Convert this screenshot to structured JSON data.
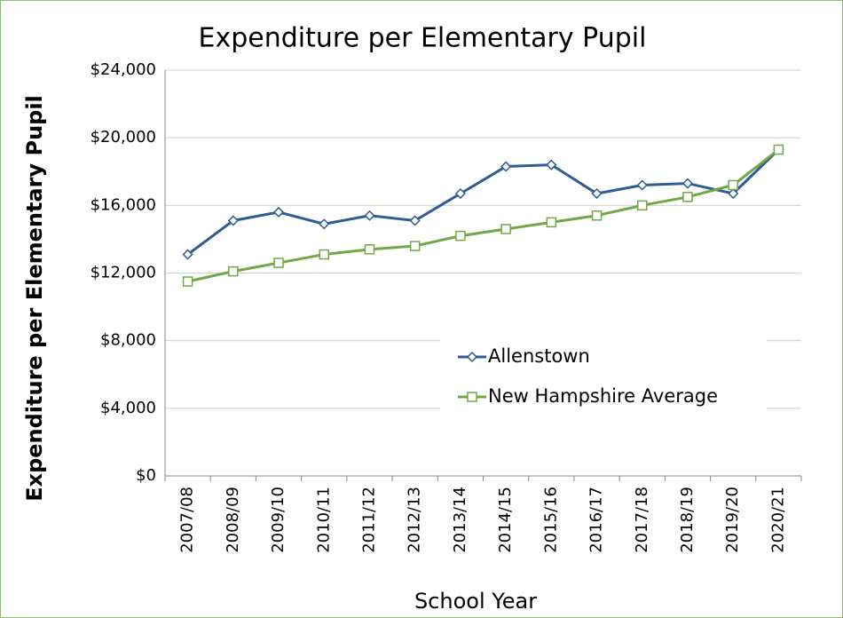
{
  "chart_data": {
    "type": "line",
    "title": "Expenditure per Elementary Pupil",
    "x_label": "School Year",
    "y_label": "Expenditure per Elementary Pupil",
    "categories": [
      "2007/08",
      "2008/09",
      "2009/10",
      "2010/11",
      "2011/12",
      "2012/13",
      "2013/14",
      "2014/15",
      "2015/16",
      "2016/17",
      "2017/18",
      "2018/19",
      "2019/20",
      "2020/21"
    ],
    "series": [
      {
        "name": "Allenstown",
        "color": "#2f5b96",
        "marker": "diamond",
        "values": [
          13100,
          15100,
          15600,
          14900,
          15400,
          15100,
          16700,
          18300,
          18400,
          16700,
          17200,
          17300,
          16700,
          19300
        ]
      },
      {
        "name": "New Hampshire Average",
        "color": "#70a845",
        "marker": "square",
        "values": [
          11500,
          12100,
          12600,
          13100,
          13400,
          13600,
          14200,
          14600,
          15000,
          15400,
          16000,
          16500,
          17200,
          19300
        ]
      }
    ],
    "ylim": [
      0,
      24000
    ],
    "yticks": [
      {
        "value": 0,
        "label": "$0"
      },
      {
        "value": 4000,
        "label": "$4,000"
      },
      {
        "value": 8000,
        "label": "$8,000"
      },
      {
        "value": 12000,
        "label": "$12,000"
      },
      {
        "value": 16000,
        "label": "$16,000"
      },
      {
        "value": 20000,
        "label": "$20,000"
      },
      {
        "value": 24000,
        "label": "$24,000"
      }
    ],
    "grid": true,
    "legend": "lower right"
  }
}
